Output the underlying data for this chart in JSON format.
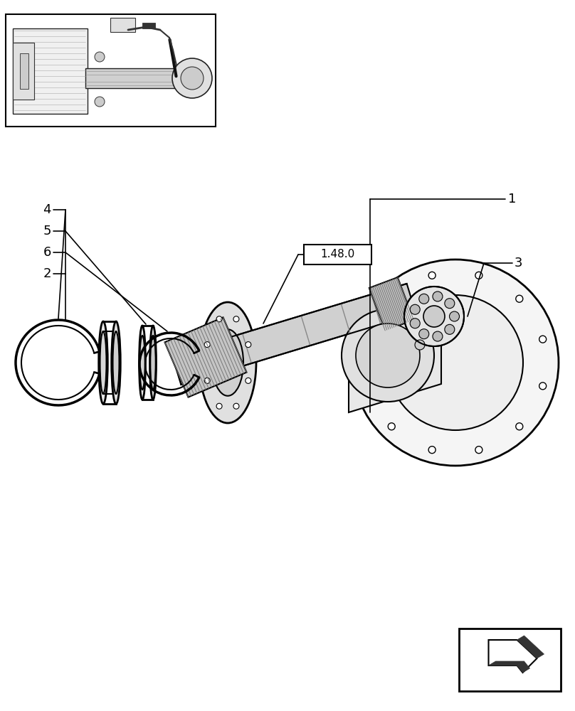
{
  "bg_color": "#ffffff",
  "line_color": "#000000",
  "fig_width": 8.08,
  "fig_height": 10.0,
  "dpi": 100,
  "ref_box_label": "1.48.0"
}
